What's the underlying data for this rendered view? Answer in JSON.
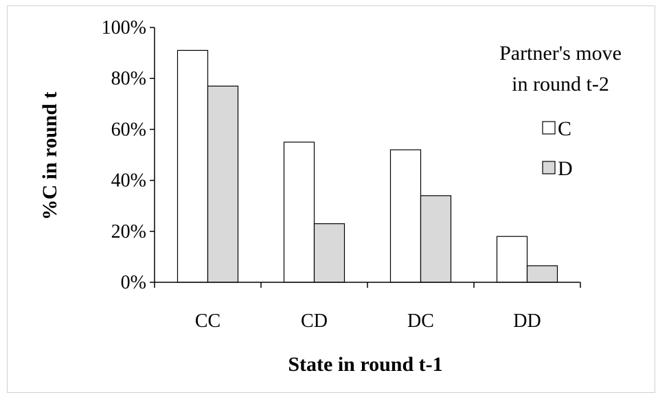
{
  "chart_data": {
    "type": "bar",
    "title": "",
    "xlabel": "State in round t-1",
    "ylabel": "%C in round t",
    "categories": [
      "CC",
      "CD",
      "DC",
      "DD"
    ],
    "series": [
      {
        "name": "C",
        "values": [
          91,
          55,
          52,
          18
        ],
        "color": "#ffffff"
      },
      {
        "name": "D",
        "values": [
          77,
          23,
          34,
          6.5
        ],
        "color": "#d9d9d9"
      }
    ],
    "ylim": [
      0,
      100
    ],
    "yticks": [
      "0%",
      "20%",
      "40%",
      "60%",
      "80%",
      "100%"
    ],
    "ytick_values": [
      0,
      20,
      40,
      60,
      80,
      100
    ],
    "grid": false,
    "legend": {
      "title_lines": [
        "Partner's move",
        "in round t-2"
      ],
      "placement": "top-right"
    }
  }
}
